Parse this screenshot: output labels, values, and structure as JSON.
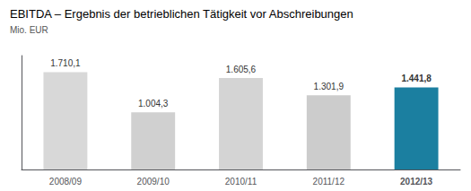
{
  "chart_data": {
    "type": "bar",
    "title": "EBITDA – Ergebnis der betrieblichen Tätigkeit vor Abschreibungen",
    "subtitle": "Mio. EUR",
    "categories": [
      "2008/09",
      "2009/10",
      "2010/11",
      "2011/12",
      "2012/13"
    ],
    "values": [
      1710.1,
      1004.3,
      1605.6,
      1301.9,
      1441.8
    ],
    "value_labels": [
      "1.710,1",
      "1.004,3",
      "1.605,6",
      "1.301,9",
      "1.441,8"
    ],
    "data_labels": true,
    "colors": [
      "#d8d8d8",
      "#d0d0d0",
      "#d4d4d4",
      "#cccccc",
      "#1b7fa0"
    ],
    "ylim": [
      0,
      2000
    ],
    "tick_labels": "x",
    "grid": false
  }
}
